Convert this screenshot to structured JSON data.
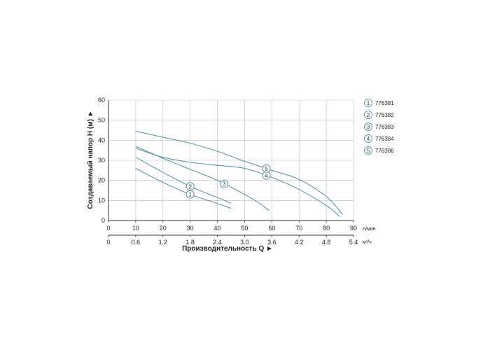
{
  "chart_data": {
    "type": "line",
    "ylabel": "Создаваемый напор H (м) ►",
    "xlabel": "Производительность Q ►",
    "x_unit_primary": "л/мин",
    "x_unit_secondary": "м³/ч",
    "xlim": [
      0,
      90
    ],
    "ylim": [
      0,
      60
    ],
    "x_ticks": [
      "0",
      "10",
      "20",
      "30",
      "40",
      "50",
      "60",
      "70",
      "80",
      "90"
    ],
    "x2_ticks": [
      "0",
      "0.6",
      "1.2",
      "1.8",
      "2.4",
      "3.0",
      "3.6",
      "4.2",
      "4.8",
      "5.4"
    ],
    "y_ticks": [
      "0",
      "10",
      "20",
      "30",
      "40",
      "50",
      "60"
    ],
    "grid": true,
    "legend_position": "right",
    "colors": {
      "curve": "#5a9aa8",
      "marker_stroke": "#5a9aa8",
      "axis": "#333333",
      "grid": "#bbbbbb"
    },
    "series": [
      {
        "marker": "1",
        "name": "776381",
        "x": [
          10,
          20,
          30,
          40,
          45
        ],
        "y": [
          26,
          19,
          13,
          8.5,
          6
        ]
      },
      {
        "marker": "2",
        "name": "776382",
        "x": [
          10,
          20,
          30,
          40,
          45
        ],
        "y": [
          31.5,
          24,
          17,
          11.5,
          8.5
        ]
      },
      {
        "marker": "3",
        "name": "776383",
        "x": [
          10,
          20,
          30,
          40,
          50,
          55,
          59
        ],
        "y": [
          37,
          31,
          25.5,
          20,
          13,
          9,
          5
        ]
      },
      {
        "marker": "4",
        "name": "776384",
        "x": [
          10,
          20,
          30,
          40,
          50,
          60,
          70,
          80,
          85
        ],
        "y": [
          36,
          31.5,
          29,
          27.5,
          26,
          21.5,
          15.5,
          7.5,
          2
        ]
      },
      {
        "marker": "5",
        "name": "776386",
        "x": [
          10,
          20,
          30,
          40,
          50,
          60,
          70,
          80,
          86
        ],
        "y": [
          44.5,
          41.5,
          38.5,
          34.5,
          29.5,
          25,
          20.5,
          12,
          3
        ]
      }
    ]
  }
}
